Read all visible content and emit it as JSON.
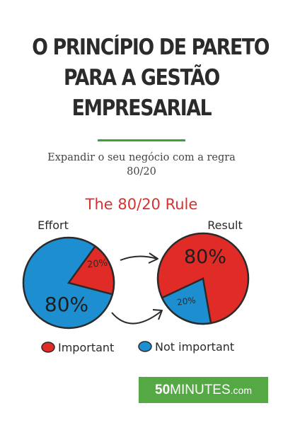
{
  "cover": {
    "title_lines": [
      "O PRINCÍPIO DE PARETO",
      "PARA A GESTÃO",
      "EMPRESARIAL"
    ],
    "subtitle_lines": [
      "Expandir o seu negócio com a regra",
      "80/20"
    ],
    "accent_color": "#3aa335"
  },
  "illustration": {
    "heading": "The 80/20 Rule",
    "heading_color": "#d8322f",
    "effort_label": "Effort",
    "result_label": "Result",
    "effort_big": "80%",
    "effort_small": "20%",
    "result_big": "80%",
    "result_small": "20%",
    "legend": [
      "Important",
      "Not important"
    ],
    "colors": {
      "important": "#e02b26",
      "not_important": "#1d8fd0",
      "outline": "#2a2a2a"
    },
    "icons": [
      "arrow-right-icon",
      "arrow-right-icon"
    ]
  },
  "publisher": {
    "num": "50",
    "word": "MINUTES",
    "domain": ".com",
    "color": "#55a944"
  }
}
